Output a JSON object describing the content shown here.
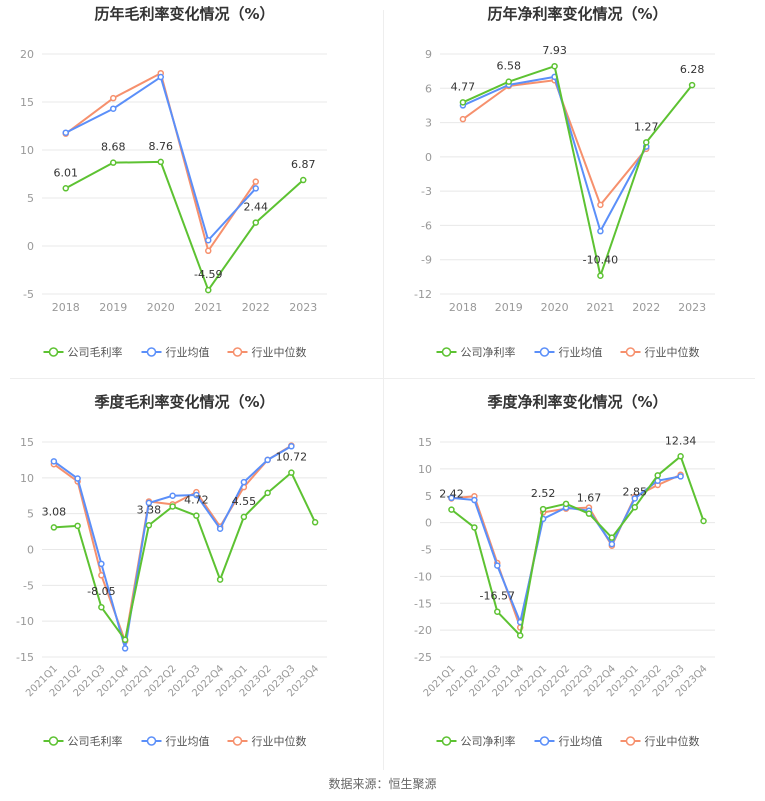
{
  "colors": {
    "company": "#5dc232",
    "avg": "#5b8ff9",
    "median": "#f6906d",
    "grid": "#e8e8e8",
    "tick": "#999999",
    "title": "#333333"
  },
  "source_text": "数据来源：恒生聚源",
  "chart_data": [
    {
      "type": "line",
      "title": "历年毛利率变化情况（%）",
      "categories": [
        "2018",
        "2019",
        "2020",
        "2021",
        "2022",
        "2023"
      ],
      "ylim": [
        -5,
        20
      ],
      "yticks": [
        "-5",
        "0",
        "5",
        "10",
        "15",
        "20"
      ],
      "grid": true,
      "legend": "bottom",
      "series": [
        {
          "name": "公司毛利率",
          "color": "#5dc232",
          "values": [
            6.01,
            8.68,
            8.76,
            -4.59,
            2.44,
            6.87
          ],
          "labels": [
            "6.01",
            "8.68",
            "8.76",
            "-4.59",
            "2.44",
            "6.87"
          ]
        },
        {
          "name": "行业均值",
          "color": "#5b8ff9",
          "values": [
            11.8,
            14.3,
            17.6,
            0.6,
            6.0,
            null
          ]
        },
        {
          "name": "行业中位数",
          "color": "#f6906d",
          "values": [
            11.7,
            15.4,
            18.0,
            -0.5,
            6.7,
            null
          ]
        }
      ]
    },
    {
      "type": "line",
      "title": "历年净利率变化情况（%）",
      "categories": [
        "2018",
        "2019",
        "2020",
        "2021",
        "2022",
        "2023"
      ],
      "ylim": [
        -12,
        9
      ],
      "yticks": [
        "-12",
        "-9",
        "-6",
        "-3",
        "0",
        "3",
        "6",
        "9"
      ],
      "grid": true,
      "legend": "bottom",
      "series": [
        {
          "name": "公司净利率",
          "color": "#5dc232",
          "values": [
            4.77,
            6.58,
            7.93,
            -10.4,
            1.27,
            6.28
          ],
          "labels": [
            "4.77",
            "6.58",
            "7.93",
            "-10.40",
            "1.27",
            "6.28"
          ]
        },
        {
          "name": "行业均值",
          "color": "#5b8ff9",
          "values": [
            4.5,
            6.3,
            7.0,
            -6.5,
            0.9,
            null
          ]
        },
        {
          "name": "行业中位数",
          "color": "#f6906d",
          "values": [
            3.3,
            6.2,
            6.7,
            -4.2,
            0.7,
            null
          ]
        }
      ]
    },
    {
      "type": "line",
      "title": "季度毛利率变化情况（%）",
      "categories": [
        "2021Q1",
        "2021Q2",
        "2021Q3",
        "2021Q4",
        "2022Q1",
        "2022Q2",
        "2022Q3",
        "2022Q4",
        "2023Q1",
        "2023Q2",
        "2023Q3",
        "2023Q4"
      ],
      "ylim": [
        -15,
        15
      ],
      "yticks": [
        "-15",
        "-10",
        "-5",
        "0",
        "5",
        "10",
        "15"
      ],
      "grid": true,
      "legend": "bottom",
      "series": [
        {
          "name": "公司毛利率",
          "color": "#5dc232",
          "values": [
            3.08,
            3.3,
            -8.05,
            -12.6,
            3.38,
            6.0,
            4.72,
            -4.2,
            4.55,
            7.9,
            10.72,
            3.8
          ],
          "labels": [
            "3.08",
            "",
            "-8.05",
            "",
            "3.38",
            "",
            "4.72",
            "",
            "4.55",
            "",
            "10.72",
            ""
          ]
        },
        {
          "name": "行业均值",
          "color": "#5b8ff9",
          "values": [
            12.3,
            9.9,
            -2.0,
            -13.8,
            6.5,
            7.5,
            7.6,
            2.9,
            9.4,
            12.5,
            14.4,
            null
          ]
        },
        {
          "name": "行业中位数",
          "color": "#f6906d",
          "values": [
            11.9,
            9.5,
            -3.6,
            -12.8,
            6.7,
            6.3,
            8.0,
            3.2,
            8.7,
            12.5,
            14.5,
            null
          ]
        }
      ]
    },
    {
      "type": "line",
      "title": "季度净利率变化情况（%）",
      "categories": [
        "2021Q1",
        "2021Q2",
        "2021Q3",
        "2021Q4",
        "2022Q1",
        "2022Q2",
        "2022Q3",
        "2022Q4",
        "2023Q1",
        "2023Q2",
        "2023Q3",
        "2023Q4"
      ],
      "ylim": [
        -25,
        15
      ],
      "yticks": [
        "-25",
        "-20",
        "-15",
        "-10",
        "-5",
        "0",
        "5",
        "10",
        "15"
      ],
      "grid": true,
      "legend": "bottom",
      "series": [
        {
          "name": "公司净利率",
          "color": "#5dc232",
          "values": [
            2.42,
            -0.9,
            -16.57,
            -21.0,
            2.52,
            3.5,
            1.67,
            -2.8,
            2.85,
            8.8,
            12.34,
            0.3
          ],
          "labels": [
            "2.42",
            "",
            "-16.57",
            "",
            "2.52",
            "",
            "1.67",
            "",
            "2.85",
            "",
            "12.34",
            ""
          ]
        },
        {
          "name": "行业均值",
          "color": "#5b8ff9",
          "values": [
            4.6,
            4.2,
            -8.0,
            -18.5,
            0.7,
            2.8,
            2.2,
            -4.0,
            4.5,
            7.8,
            8.6,
            null
          ]
        },
        {
          "name": "行业中位数",
          "color": "#f6906d",
          "values": [
            4.5,
            4.9,
            -7.5,
            -19.5,
            1.9,
            2.6,
            2.8,
            -4.3,
            4.8,
            7.0,
            8.9,
            null
          ]
        }
      ]
    }
  ]
}
